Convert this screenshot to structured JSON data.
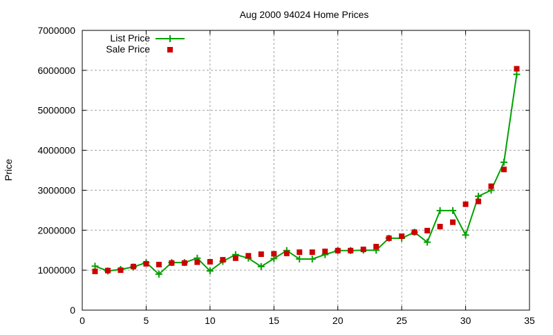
{
  "chart_data": {
    "type": "line",
    "title": "Aug 2000 94024 Home Prices",
    "xlabel": "",
    "ylabel": "Price",
    "xlim": [
      0,
      35
    ],
    "ylim": [
      0,
      7000000
    ],
    "xticks": [
      0,
      5,
      10,
      15,
      20,
      25,
      30,
      35
    ],
    "yticks": [
      0,
      1000000,
      2000000,
      3000000,
      4000000,
      5000000,
      6000000,
      7000000
    ],
    "grid": true,
    "legend_position": "top-left",
    "x": [
      1,
      2,
      3,
      4,
      5,
      6,
      7,
      8,
      9,
      10,
      11,
      12,
      13,
      14,
      15,
      16,
      17,
      18,
      19,
      20,
      21,
      22,
      23,
      24,
      25,
      26,
      27,
      28,
      29,
      30,
      31,
      32,
      33,
      34
    ],
    "series": [
      {
        "name": "List Price",
        "style": "linespoints",
        "color": "#00a000",
        "values": [
          1100000,
          980000,
          1020000,
          1080000,
          1190000,
          900000,
          1190000,
          1190000,
          1300000,
          980000,
          1220000,
          1390000,
          1300000,
          1090000,
          1290000,
          1490000,
          1280000,
          1280000,
          1390000,
          1490000,
          1490000,
          1500000,
          1500000,
          1800000,
          1800000,
          1950000,
          1700000,
          2490000,
          2490000,
          1880000,
          2850000,
          3000000,
          3700000,
          5900000
        ]
      },
      {
        "name": "Sale Price",
        "style": "points",
        "color": "#cc0000",
        "values": [
          970000,
          990000,
          1000000,
          1090000,
          1160000,
          1140000,
          1180000,
          1180000,
          1200000,
          1210000,
          1260000,
          1300000,
          1360000,
          1400000,
          1410000,
          1420000,
          1450000,
          1450000,
          1470000,
          1490000,
          1490000,
          1520000,
          1590000,
          1800000,
          1850000,
          1950000,
          1990000,
          2090000,
          2200000,
          2650000,
          2720000,
          3100000,
          3520000,
          6040000
        ]
      }
    ]
  }
}
